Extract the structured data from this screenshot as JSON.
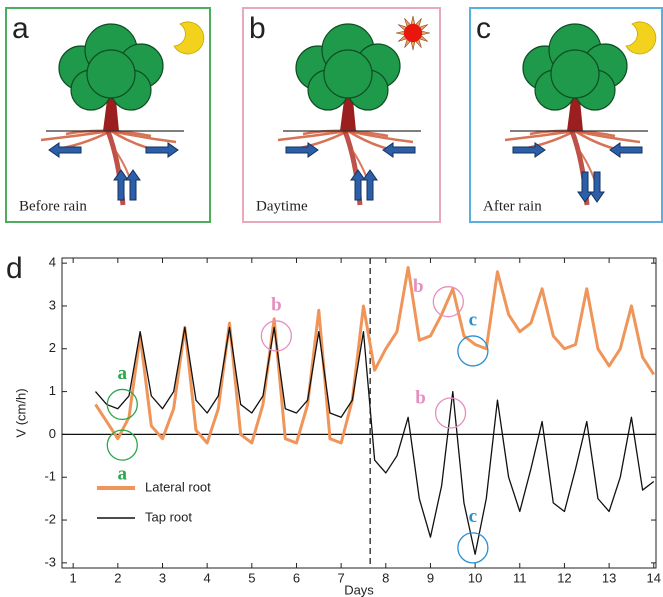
{
  "panels": [
    {
      "label": "a",
      "caption": "Before rain",
      "border": "#4cae5c",
      "sky": "moon",
      "lateral": "out",
      "tap": "up"
    },
    {
      "label": "b",
      "caption": "Daytime",
      "border": "#e8aabb",
      "sky": "sun",
      "lateral": "in",
      "tap": "up"
    },
    {
      "label": "c",
      "caption": "After rain",
      "border": "#5aaee0",
      "sky": "moon",
      "lateral": "in",
      "tap": "down"
    }
  ],
  "chart_data": {
    "type": "line",
    "panel_label": "d",
    "xlabel": "Days",
    "ylabel": "V (cm/h)",
    "x": [
      1.5,
      1.75,
      2,
      2.25,
      2.5,
      2.75,
      3,
      3.25,
      3.5,
      3.75,
      4,
      4.25,
      4.5,
      4.75,
      5,
      5.25,
      5.5,
      5.75,
      6,
      6.25,
      6.5,
      6.75,
      7,
      7.25,
      7.5,
      7.75,
      8,
      8.25,
      8.5,
      8.75,
      9,
      9.25,
      9.5,
      9.75,
      10,
      10.25,
      10.5,
      10.75,
      11,
      11.25,
      11.5,
      11.75,
      12,
      12.25,
      12.5,
      12.75,
      13,
      13.25,
      13.5,
      13.75,
      14
    ],
    "series": [
      {
        "name": "Lateral root",
        "color": "#f0955a",
        "values": [
          0.7,
          0.3,
          -0.1,
          0.4,
          2.3,
          0.2,
          -0.1,
          0.6,
          2.5,
          0.1,
          -0.2,
          0.6,
          2.6,
          0,
          -0.2,
          0.7,
          2.7,
          -0.1,
          -0.2,
          0.7,
          2.9,
          -0.1,
          -0.2,
          0.8,
          3.0,
          1.5,
          2.0,
          2.4,
          3.9,
          2.2,
          2.3,
          2.8,
          3.4,
          2.3,
          2.1,
          2.0,
          3.8,
          2.8,
          2.4,
          2.6,
          3.4,
          2.3,
          2.0,
          2.1,
          3.4,
          2.0,
          1.6,
          2.0,
          3.0,
          1.8,
          1.4
        ]
      },
      {
        "name": "Tap root",
        "color": "#111111",
        "values": [
          1.0,
          0.7,
          0.6,
          0.9,
          2.4,
          0.9,
          0.6,
          1.0,
          2.5,
          0.8,
          0.5,
          0.9,
          2.5,
          0.7,
          0.5,
          0.9,
          2.5,
          0.6,
          0.5,
          0.8,
          2.4,
          0.5,
          0.4,
          0.8,
          2.4,
          -0.6,
          -0.9,
          -0.5,
          0.4,
          -1.5,
          -2.4,
          -1.2,
          1.0,
          -1.6,
          -2.8,
          -1.5,
          0.8,
          -1.0,
          -1.8,
          -0.8,
          0.3,
          -1.6,
          -1.8,
          -0.8,
          0.3,
          -1.5,
          -1.8,
          -1.0,
          0.4,
          -1.3,
          -1.1
        ]
      }
    ],
    "xlim": [
      0.75,
      14.05
    ],
    "ylim": [
      -3.12,
      4.12
    ],
    "xticks": [
      1,
      2,
      3,
      4,
      5,
      6,
      7,
      8,
      9,
      10,
      11,
      12,
      13,
      14
    ],
    "yticks": [
      -3,
      -2,
      -1,
      0,
      1,
      2,
      3,
      4
    ],
    "rain_x": 7.65,
    "zero_line": true,
    "legend": "lower left",
    "annotations": [
      {
        "text": "a",
        "x": 2.1,
        "y": 0.7,
        "color": "#2aa84a",
        "place": "above"
      },
      {
        "text": "a",
        "x": 2.1,
        "y": -0.25,
        "color": "#2aa84a",
        "place": "below"
      },
      {
        "text": "b",
        "x": 5.55,
        "y": 2.3,
        "color": "#e58fc0",
        "place": "above"
      },
      {
        "text": "b",
        "x": 9.4,
        "y": 3.1,
        "color": "#e58fc0",
        "place": "left"
      },
      {
        "text": "c",
        "x": 9.95,
        "y": 1.95,
        "color": "#2a8fd0",
        "place": "above"
      },
      {
        "text": "b",
        "x": 9.45,
        "y": 0.5,
        "color": "#e58fc0",
        "place": "left"
      },
      {
        "text": "c",
        "x": 9.95,
        "y": -2.65,
        "color": "#2a8fd0",
        "place": "above"
      }
    ]
  }
}
